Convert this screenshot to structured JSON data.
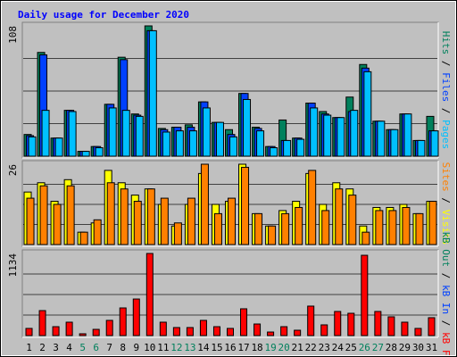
{
  "chart_data": {
    "type": "bar",
    "title": "Daily usage for December 2020",
    "categories": [
      "1",
      "2",
      "3",
      "4",
      "5",
      "6",
      "7",
      "8",
      "9",
      "10",
      "11",
      "12",
      "13",
      "14",
      "15",
      "16",
      "17",
      "18",
      "19",
      "20",
      "21",
      "22",
      "23",
      "24",
      "25",
      "26",
      "27",
      "28",
      "29",
      "30",
      "31"
    ],
    "weekends": [
      "5",
      "6",
      "12",
      "13",
      "19",
      "20",
      "26",
      "27"
    ],
    "weekday_color": "#000000",
    "weekend_color": "#00805c",
    "grid": true,
    "legend_separator": " / ",
    "panels": [
      {
        "ylim": [
          0,
          108
        ],
        "yticks": [
          108
        ],
        "legend": [
          {
            "name": "Pages",
            "color": "#00c0ff"
          },
          {
            "name": "Files",
            "color": "#0040ff"
          },
          {
            "name": "Hits",
            "color": "#00805c"
          }
        ],
        "series": [
          {
            "name": "Hits",
            "color": "#00805c",
            "values": [
              18,
              86,
              15,
              38,
              4,
              8,
              43,
              82,
              35,
              108,
              23,
              24,
              26,
              45,
              28,
              22,
              52,
              24,
              8,
              30,
              15,
              44,
              37,
              32,
              49,
              76,
              29,
              22,
              35,
              13,
              33
            ]
          },
          {
            "name": "Files",
            "color": "#0040ff",
            "values": [
              17,
              84,
              15,
              38,
              4,
              8,
              43,
              80,
              34,
              104,
              22,
              24,
              24,
              45,
              28,
              18,
              52,
              23,
              8,
              13,
              15,
              44,
              35,
              32,
              37,
              73,
              29,
              22,
              35,
              13,
              21
            ]
          },
          {
            "name": "Pages",
            "color": "#00c0ff",
            "values": [
              16,
              38,
              15,
              37,
              4,
              7,
              40,
              38,
              33,
              104,
              20,
              21,
              21,
              40,
              28,
              16,
              47,
              21,
              7,
              13,
              14,
              40,
              34,
              32,
              38,
              70,
              29,
              22,
              35,
              13,
              21
            ]
          }
        ]
      },
      {
        "ylim": [
          0,
          26
        ],
        "yticks": [
          26
        ],
        "legend": [
          {
            "name": "Visits",
            "color": "#ffff00"
          },
          {
            "name": "Sites",
            "color": "#ff8000"
          }
        ],
        "series": [
          {
            "name": "Visits",
            "color": "#ffff00",
            "values": [
              17,
              20,
              14,
              21,
              4,
              7,
              24,
              20,
              16,
              18,
              13,
              6,
              13,
              23,
              13,
              14,
              26,
              10,
              6,
              11,
              14,
              23,
              13,
              20,
              18,
              6,
              12,
              12,
              13,
              10,
              14
            ]
          },
          {
            "name": "Sites",
            "color": "#ff8000",
            "values": [
              15,
              19,
              13,
              19,
              4,
              8,
              20,
              18,
              14,
              18,
              15,
              7,
              15,
              26,
              10,
              15,
              25,
              10,
              6,
              10,
              12,
              24,
              11,
              18,
              16,
              4,
              11,
              11,
              12,
              10,
              14
            ]
          }
        ]
      },
      {
        "ylim": [
          0,
          1134
        ],
        "yticks": [
          1134
        ],
        "legend": [
          {
            "name": "kB F",
            "color": "#ff0000"
          },
          {
            "name": "kB In",
            "color": "#0040ff"
          },
          {
            "name": "kB Out",
            "color": "#00805c"
          }
        ],
        "series": [
          {
            "name": "kB F",
            "color": "#ff0000",
            "values": [
              99,
              345,
              123,
              185,
              25,
              86,
              210,
              382,
              505,
              1134,
              185,
              111,
              111,
              210,
              123,
              99,
              370,
              160,
              49,
              123,
              74,
              407,
              148,
              333,
              308,
              1109,
              333,
              259,
              185,
              99,
              247
            ]
          }
        ]
      }
    ]
  }
}
